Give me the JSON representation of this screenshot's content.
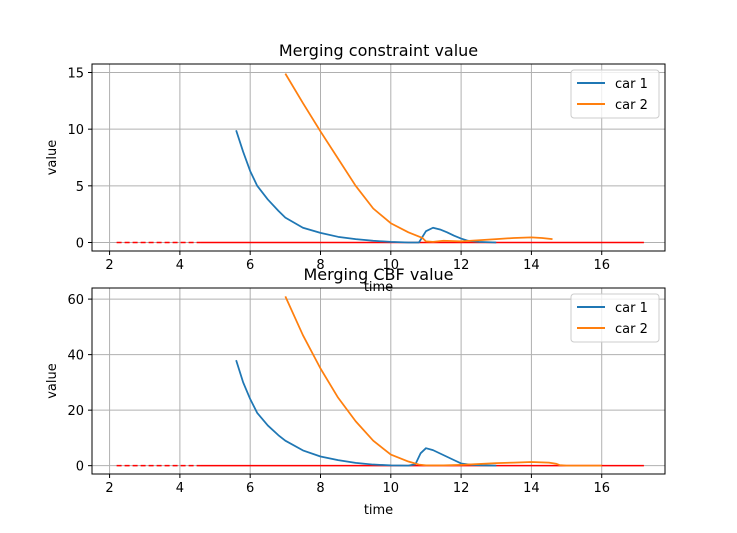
{
  "chart_data": [
    {
      "type": "line",
      "title": "Merging constraint value",
      "xlabel": "time",
      "ylabel": "value",
      "xlim": [
        1.5,
        17.8
      ],
      "ylim": [
        -0.75,
        15.75
      ],
      "xticks": [
        2,
        4,
        6,
        8,
        10,
        12,
        14,
        16
      ],
      "yticks": [
        0,
        5,
        10,
        15
      ],
      "grid": true,
      "legend_position": "top-right",
      "series": [
        {
          "name": "car 1",
          "color": "#1f77b4",
          "x": [
            5.6,
            5.8,
            6.0,
            6.2,
            6.5,
            6.8,
            7.0,
            7.5,
            8.0,
            8.5,
            9.0,
            9.5,
            10.0,
            10.5,
            10.8,
            11.0,
            11.2,
            11.4,
            11.6,
            11.8,
            12.0,
            12.2,
            12.5,
            13.0
          ],
          "y": [
            9.9,
            8.0,
            6.3,
            5.0,
            3.8,
            2.8,
            2.2,
            1.3,
            0.85,
            0.5,
            0.3,
            0.15,
            0.05,
            0.0,
            0.0,
            1.0,
            1.3,
            1.15,
            0.9,
            0.6,
            0.35,
            0.15,
            0.05,
            0.0
          ]
        },
        {
          "name": "car 2",
          "color": "#ff7f0e",
          "x": [
            7.0,
            7.5,
            8.0,
            8.5,
            9.0,
            9.5,
            10.0,
            10.5,
            10.9,
            11.0,
            11.2,
            11.5,
            12.0,
            12.5,
            13.0,
            13.5,
            14.0,
            14.3,
            14.6
          ],
          "y": [
            14.9,
            12.3,
            9.8,
            7.4,
            5.0,
            3.0,
            1.7,
            0.9,
            0.4,
            0.1,
            0.05,
            0.15,
            0.1,
            0.2,
            0.3,
            0.4,
            0.45,
            0.4,
            0.3
          ]
        }
      ],
      "reference_line": {
        "color": "#ff0000",
        "y": 0,
        "dashed_x": [
          2.2,
          4.6
        ],
        "solid_x": [
          4.6,
          17.2
        ]
      }
    },
    {
      "type": "line",
      "title": "Merging CBF value",
      "xlabel": "time",
      "ylabel": "value",
      "xlim": [
        1.5,
        17.8
      ],
      "ylim": [
        -3,
        64
      ],
      "xticks": [
        2,
        4,
        6,
        8,
        10,
        12,
        14,
        16
      ],
      "yticks": [
        0,
        20,
        40,
        60
      ],
      "grid": true,
      "legend_position": "top-right",
      "series": [
        {
          "name": "car 1",
          "color": "#1f77b4",
          "x": [
            5.6,
            5.8,
            6.0,
            6.2,
            6.5,
            6.8,
            7.0,
            7.5,
            8.0,
            8.5,
            9.0,
            9.5,
            10.0,
            10.5,
            10.7,
            10.85,
            11.0,
            11.2,
            11.5,
            11.8,
            12.0,
            12.3,
            12.6,
            13.0
          ],
          "y": [
            38.0,
            30.0,
            24.0,
            19.0,
            14.5,
            11.0,
            9.0,
            5.5,
            3.3,
            2.0,
            1.0,
            0.4,
            0.1,
            0.0,
            0.5,
            4.5,
            6.3,
            5.6,
            3.8,
            2.0,
            0.8,
            0.3,
            0.1,
            0.0
          ]
        },
        {
          "name": "car 2",
          "color": "#ff7f0e",
          "x": [
            7.0,
            7.5,
            8.0,
            8.5,
            9.0,
            9.5,
            10.0,
            10.5,
            10.8,
            11.0,
            11.5,
            12.0,
            12.5,
            13.0,
            13.5,
            14.0,
            14.5,
            14.7,
            14.8,
            15.0,
            16.0
          ],
          "y": [
            61.0,
            47.0,
            35.0,
            24.5,
            16.0,
            9.0,
            4.0,
            1.5,
            0.4,
            0.1,
            0.1,
            0.3,
            0.6,
            0.9,
            1.1,
            1.3,
            1.1,
            0.7,
            0.2,
            0.0,
            0.0
          ]
        }
      ],
      "reference_line": {
        "color": "#ff0000",
        "y": 0,
        "dashed_x": [
          2.2,
          4.6
        ],
        "solid_x": [
          4.6,
          17.2
        ]
      }
    }
  ]
}
